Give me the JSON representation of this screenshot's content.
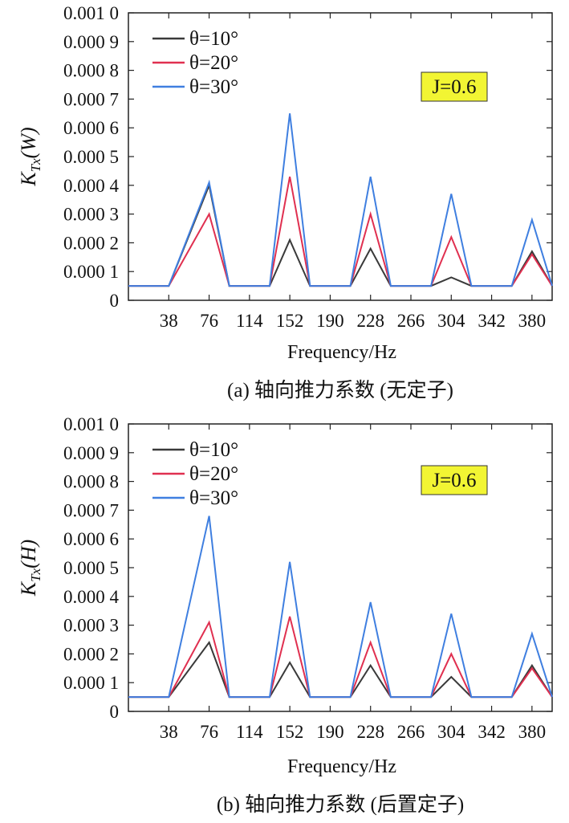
{
  "chart_data": [
    {
      "type": "line",
      "panel": "a",
      "caption": "(a) 轴向推力系数 (无定子)",
      "xlabel": "Frequency/Hz",
      "ylabel": "K",
      "ylabel_sub": "Tx",
      "ylabel_arg": "(W)",
      "annotation": "J=0.6",
      "ylim": [
        0,
        0.001
      ],
      "yticks": [
        "0",
        "0.000 1",
        "0.000 2",
        "0.000 3",
        "0.000 4",
        "0.000 5",
        "0.000 6",
        "0.000 7",
        "0.000 8",
        "0.000 9",
        "0.001 0"
      ],
      "xlim": [
        0,
        399
      ],
      "xticks": [
        "38",
        "76",
        "114",
        "152",
        "190",
        "228",
        "266",
        "304",
        "342",
        "380"
      ],
      "x": [
        0,
        38,
        76,
        95,
        133,
        152,
        171,
        209,
        228,
        247,
        285,
        304,
        323,
        361,
        380,
        399
      ],
      "series": [
        {
          "name": "θ=10°",
          "color": "#3a3a3a",
          "values": [
            5e-05,
            5e-05,
            0.0004,
            5e-05,
            5e-05,
            0.00021,
            5e-05,
            5e-05,
            0.00018,
            5e-05,
            5e-05,
            8e-05,
            5e-05,
            5e-05,
            0.00017,
            5e-05
          ]
        },
        {
          "name": "θ=20°",
          "color": "#e03050",
          "values": [
            5e-05,
            5e-05,
            0.0003,
            5e-05,
            5e-05,
            0.00043,
            5e-05,
            5e-05,
            0.0003,
            5e-05,
            5e-05,
            0.00022,
            5e-05,
            5e-05,
            0.00016,
            5e-05
          ]
        },
        {
          "name": "θ=30°",
          "color": "#3f7fe0",
          "values": [
            5e-05,
            5e-05,
            0.00041,
            5e-05,
            5e-05,
            0.00065,
            5e-05,
            5e-05,
            0.00043,
            5e-05,
            5e-05,
            0.00037,
            5e-05,
            5e-05,
            0.00028,
            5e-05
          ]
        }
      ]
    },
    {
      "type": "line",
      "panel": "b",
      "caption": "(b) 轴向推力系数 (后置定子)",
      "xlabel": "Frequency/Hz",
      "ylabel": "K",
      "ylabel_sub": "Tx",
      "ylabel_arg": "(H)",
      "annotation": "J=0.6",
      "ylim": [
        0,
        0.001
      ],
      "yticks": [
        "0",
        "0.000 1",
        "0.000 2",
        "0.000 3",
        "0.000 4",
        "0.000 5",
        "0.000 6",
        "0.000 7",
        "0.000 8",
        "0.000 9",
        "0.001 0"
      ],
      "xlim": [
        0,
        399
      ],
      "xticks": [
        "38",
        "76",
        "114",
        "152",
        "190",
        "228",
        "266",
        "304",
        "342",
        "380"
      ],
      "x": [
        0,
        38,
        76,
        95,
        133,
        152,
        171,
        209,
        228,
        247,
        285,
        304,
        323,
        361,
        380,
        399
      ],
      "series": [
        {
          "name": "θ=10°",
          "color": "#3a3a3a",
          "values": [
            5e-05,
            5e-05,
            0.00024,
            5e-05,
            5e-05,
            0.00017,
            5e-05,
            5e-05,
            0.00016,
            5e-05,
            5e-05,
            0.00012,
            5e-05,
            5e-05,
            0.00016,
            5e-05
          ]
        },
        {
          "name": "θ=20°",
          "color": "#e03050",
          "values": [
            5e-05,
            5e-05,
            0.00031,
            5e-05,
            5e-05,
            0.00033,
            5e-05,
            5e-05,
            0.00024,
            5e-05,
            5e-05,
            0.0002,
            5e-05,
            5e-05,
            0.00015,
            5e-05
          ]
        },
        {
          "name": "θ=30°",
          "color": "#3f7fe0",
          "values": [
            5e-05,
            5e-05,
            0.00068,
            5e-05,
            5e-05,
            0.00052,
            5e-05,
            5e-05,
            0.00038,
            5e-05,
            5e-05,
            0.00034,
            5e-05,
            5e-05,
            0.00027,
            5e-05
          ]
        }
      ]
    }
  ]
}
